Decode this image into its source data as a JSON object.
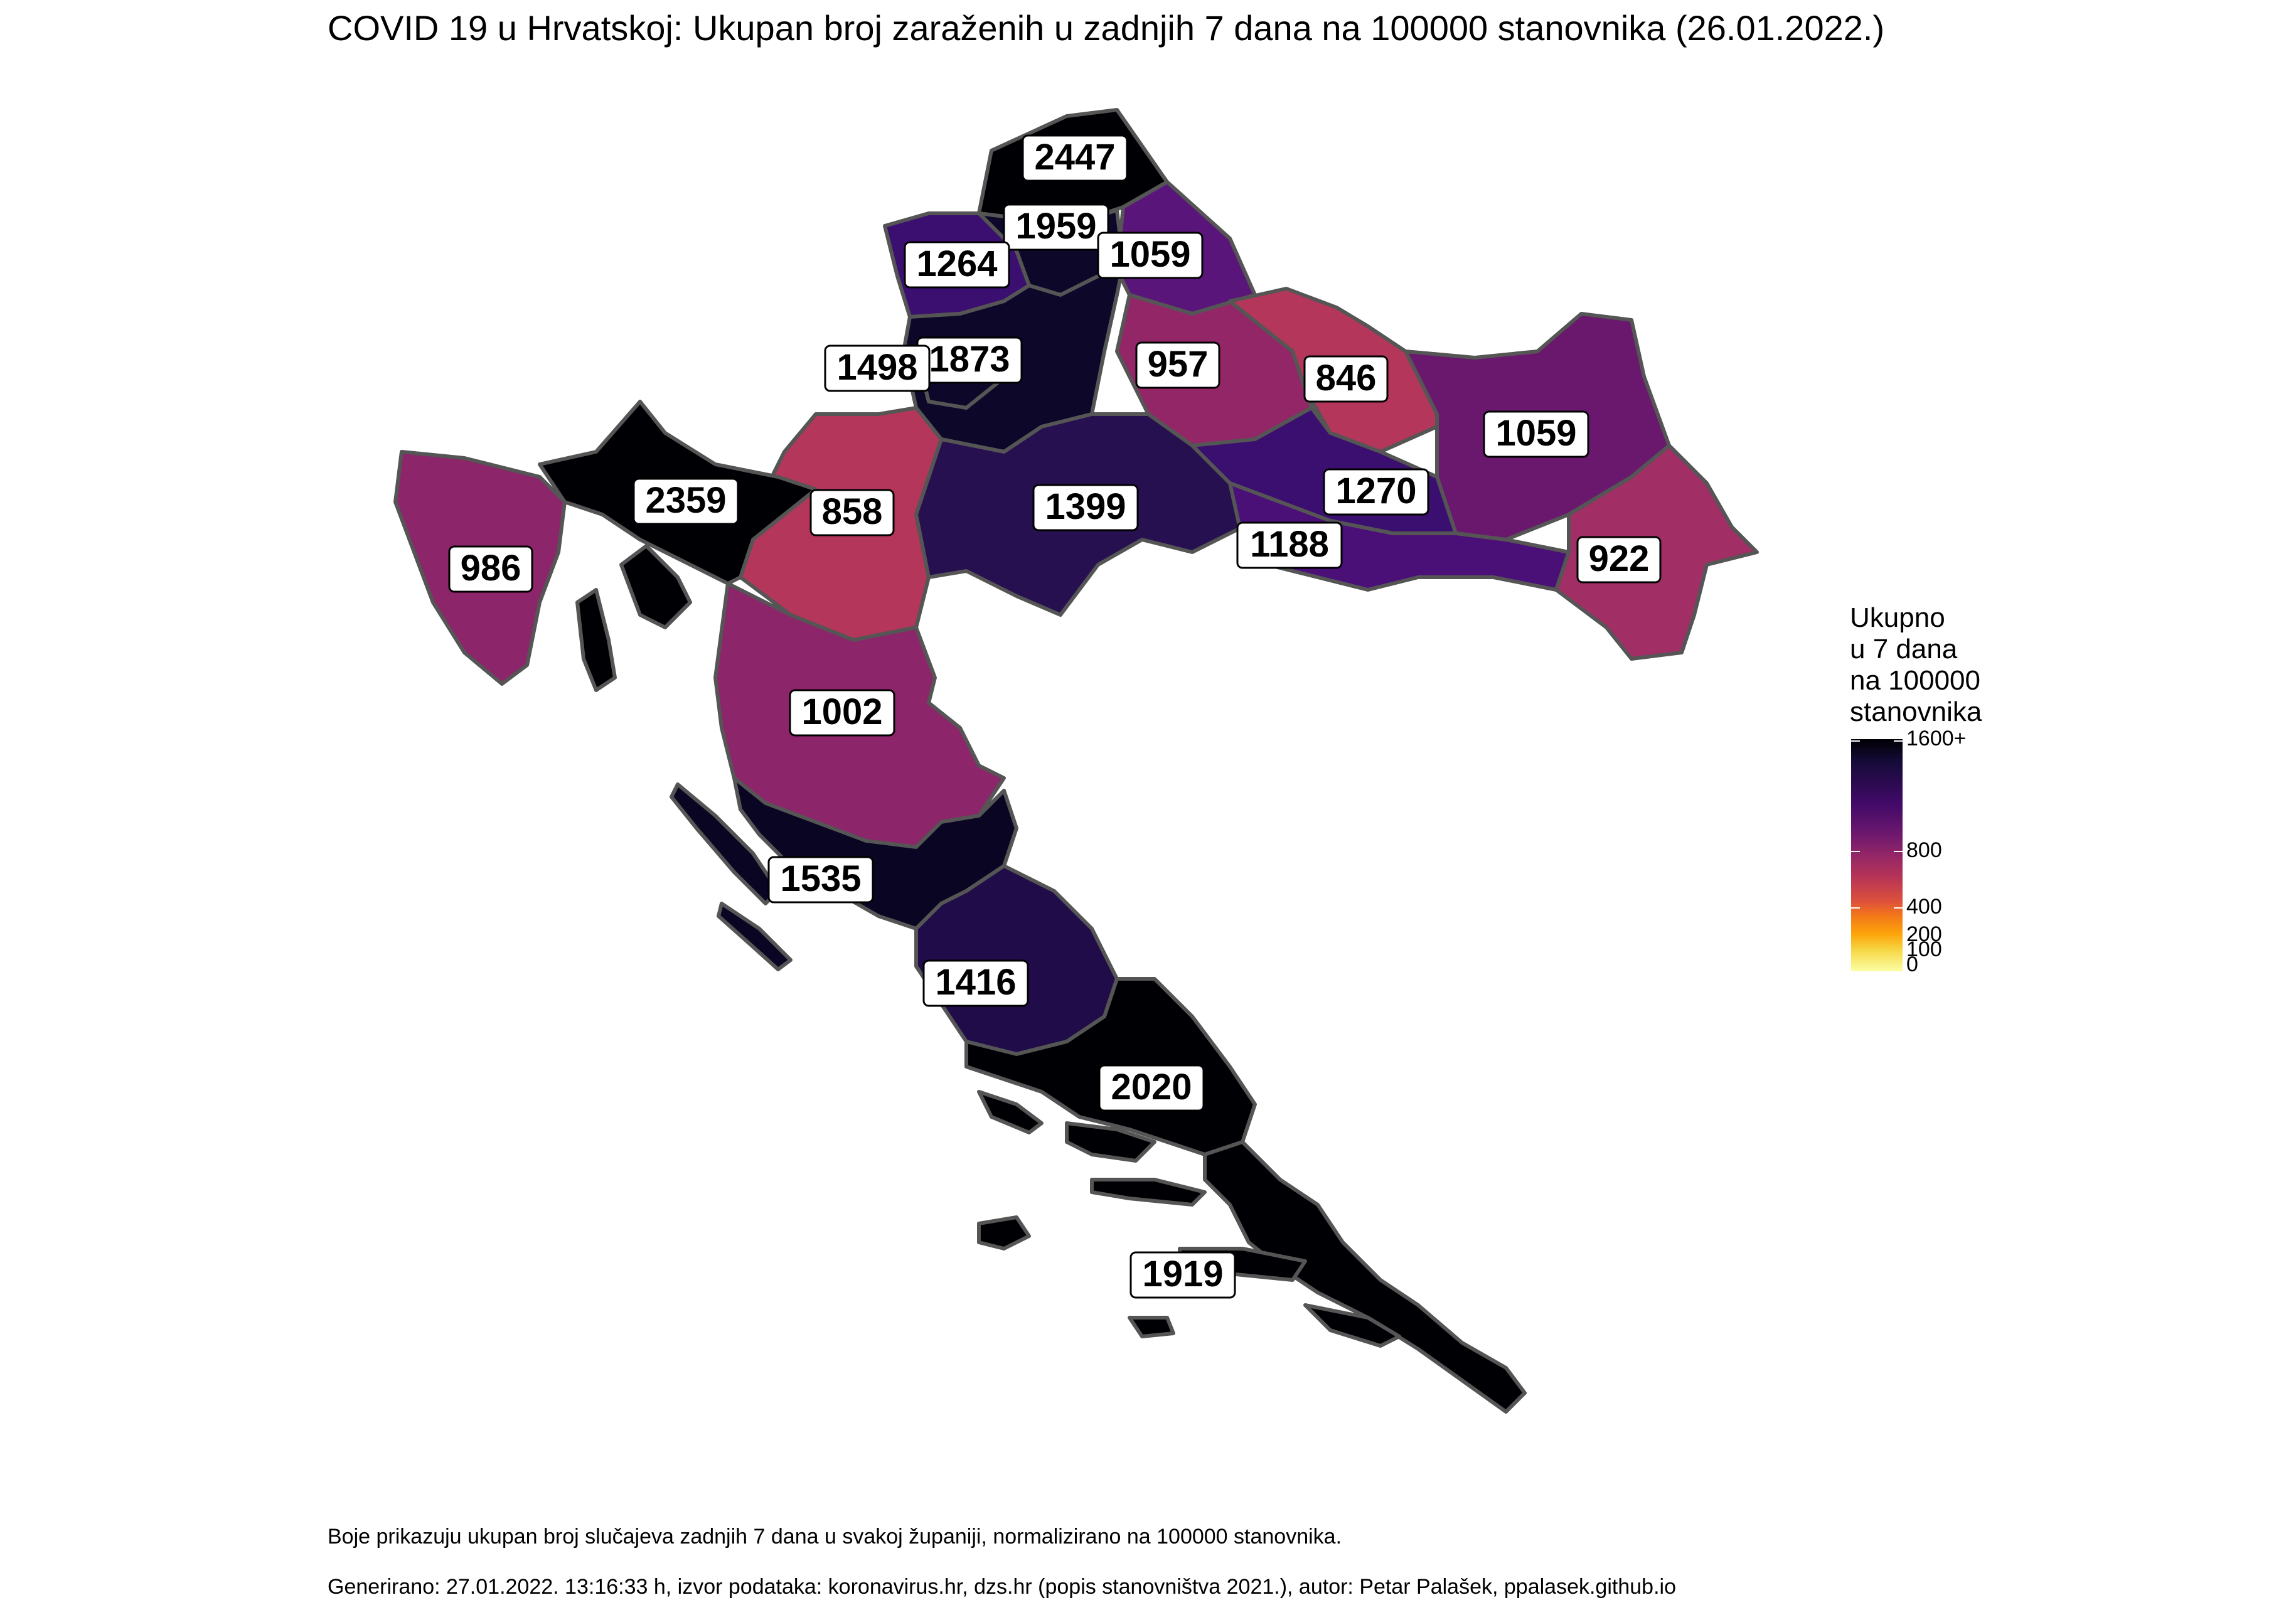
{
  "title": "COVID 19 u Hrvatskoj: Ukupan broj zaraženih u zadnjih 7 dana na 100000 stanovnika (26.01.2022.)",
  "legend": {
    "title": "Ukupno\nu 7 dana\nna 100000\nstanovnika",
    "ticks": [
      "1600+",
      "800",
      "400",
      "200",
      "100",
      "0"
    ]
  },
  "counties": [
    {
      "value": "2447"
    },
    {
      "value": "1959"
    },
    {
      "value": "1264"
    },
    {
      "value": "1059"
    },
    {
      "value": "1873"
    },
    {
      "value": "1498"
    },
    {
      "value": "957"
    },
    {
      "value": "846"
    },
    {
      "value": "1059"
    },
    {
      "value": "2359"
    },
    {
      "value": "858"
    },
    {
      "value": "1399"
    },
    {
      "value": "1270"
    },
    {
      "value": "1188"
    },
    {
      "value": "922"
    },
    {
      "value": "986"
    },
    {
      "value": "1002"
    },
    {
      "value": "1535"
    },
    {
      "value": "1416"
    },
    {
      "value": "2020"
    },
    {
      "value": "1919"
    }
  ],
  "colors": {
    "outline": "#555555",
    "label_bg": "#ffffff"
  },
  "footer": {
    "note": "Boje prikazuju ukupan broj slučajeva zadnjih 7 dana u svakoj županiji, normalizirano na 100000 stanovnika.",
    "generated": "Generirano: 27.01.2022. 13:16:33 h, izvor podataka: koronavirus.hr, dzs.hr (popis stanovništva 2021.), autor: Petar Palašek, ppalasek.github.io"
  }
}
